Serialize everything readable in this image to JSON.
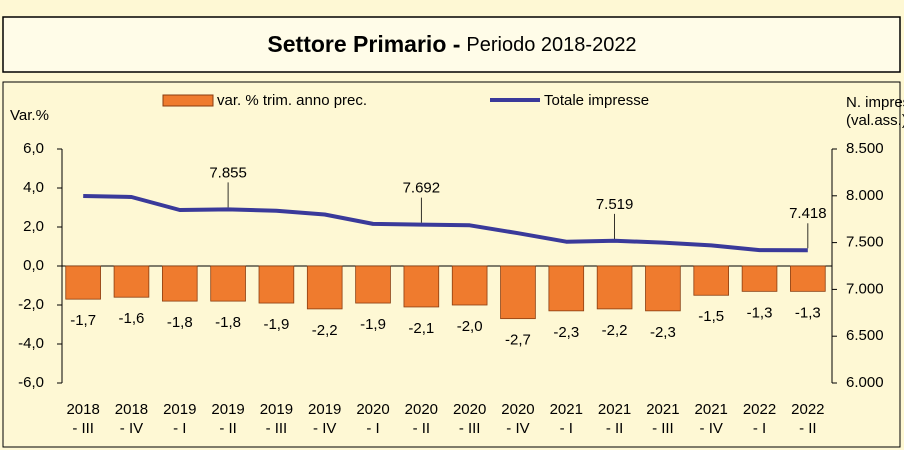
{
  "chart_data": {
    "type": "bar_line",
    "title": "Settore Primario -",
    "subtitle": "Periodo 2018-2022",
    "ylabel": "Var.%",
    "y2label": [
      "N. imprese",
      "(val.ass.)"
    ],
    "legend": "top",
    "categories": [
      [
        "2018",
        "- III"
      ],
      [
        "2018",
        "- IV"
      ],
      [
        "2019",
        "- I"
      ],
      [
        "2019",
        "- II"
      ],
      [
        "2019",
        "- III"
      ],
      [
        "2019",
        "- IV"
      ],
      [
        "2020",
        "- I"
      ],
      [
        "2020",
        "- II"
      ],
      [
        "2020",
        "- III"
      ],
      [
        "2020",
        "- IV"
      ],
      [
        "2021",
        "- I"
      ],
      [
        "2021",
        "- II"
      ],
      [
        "2021",
        "- III"
      ],
      [
        "2021",
        "- IV"
      ],
      [
        "2022",
        "- I"
      ],
      [
        "2022",
        "- II"
      ]
    ],
    "series": [
      {
        "name": "var. % trim. anno prec.",
        "type": "bar",
        "color": "#ef7b2e",
        "values": [
          -1.7,
          -1.6,
          -1.8,
          -1.8,
          -1.9,
          -2.2,
          -1.9,
          -2.1,
          -2.0,
          -2.7,
          -2.3,
          -2.2,
          -2.3,
          -1.5,
          -1.3,
          -1.3
        ],
        "value_labels": [
          "-1,7",
          "-1,6",
          "-1,8",
          "-1,8",
          "-1,9",
          "-2,2",
          "-1,9",
          "-2,1",
          "-2,0",
          "-2,7",
          "-2,3",
          "-2,2",
          "-2,3",
          "-1,5",
          "-1,3",
          "-1,3"
        ]
      },
      {
        "name": "Totale impresse",
        "type": "line",
        "axis": "y2",
        "color": "#3a3a9a",
        "values": [
          7998,
          7987,
          7848,
          7855,
          7840,
          7800,
          7700,
          7692,
          7685,
          7600,
          7510,
          7519,
          7500,
          7470,
          7420,
          7418
        ],
        "value_labels": [
          null,
          null,
          null,
          "7.855",
          null,
          null,
          null,
          "7.692",
          null,
          null,
          null,
          "7.519",
          null,
          null,
          null,
          "7.418"
        ]
      }
    ],
    "ylim": [
      -6,
      6
    ],
    "yticks": [
      {
        "value": -6,
        "label": "-6,0"
      },
      {
        "value": -4,
        "label": "-4,0"
      },
      {
        "value": -2,
        "label": "-2,0"
      },
      {
        "value": 0,
        "label": "0,0"
      },
      {
        "value": 2,
        "label": "2,0"
      },
      {
        "value": 4,
        "label": "4,0"
      },
      {
        "value": 6,
        "label": "6,0"
      }
    ],
    "y2lim": [
      6000,
      8500
    ],
    "y2ticks": [
      {
        "value": 6000,
        "label": "6.000"
      },
      {
        "value": 6500,
        "label": "6.500"
      },
      {
        "value": 7000,
        "label": "7.000"
      },
      {
        "value": 7500,
        "label": "7.500"
      },
      {
        "value": 8000,
        "label": "8.000"
      },
      {
        "value": 8500,
        "label": "8.500"
      }
    ]
  }
}
